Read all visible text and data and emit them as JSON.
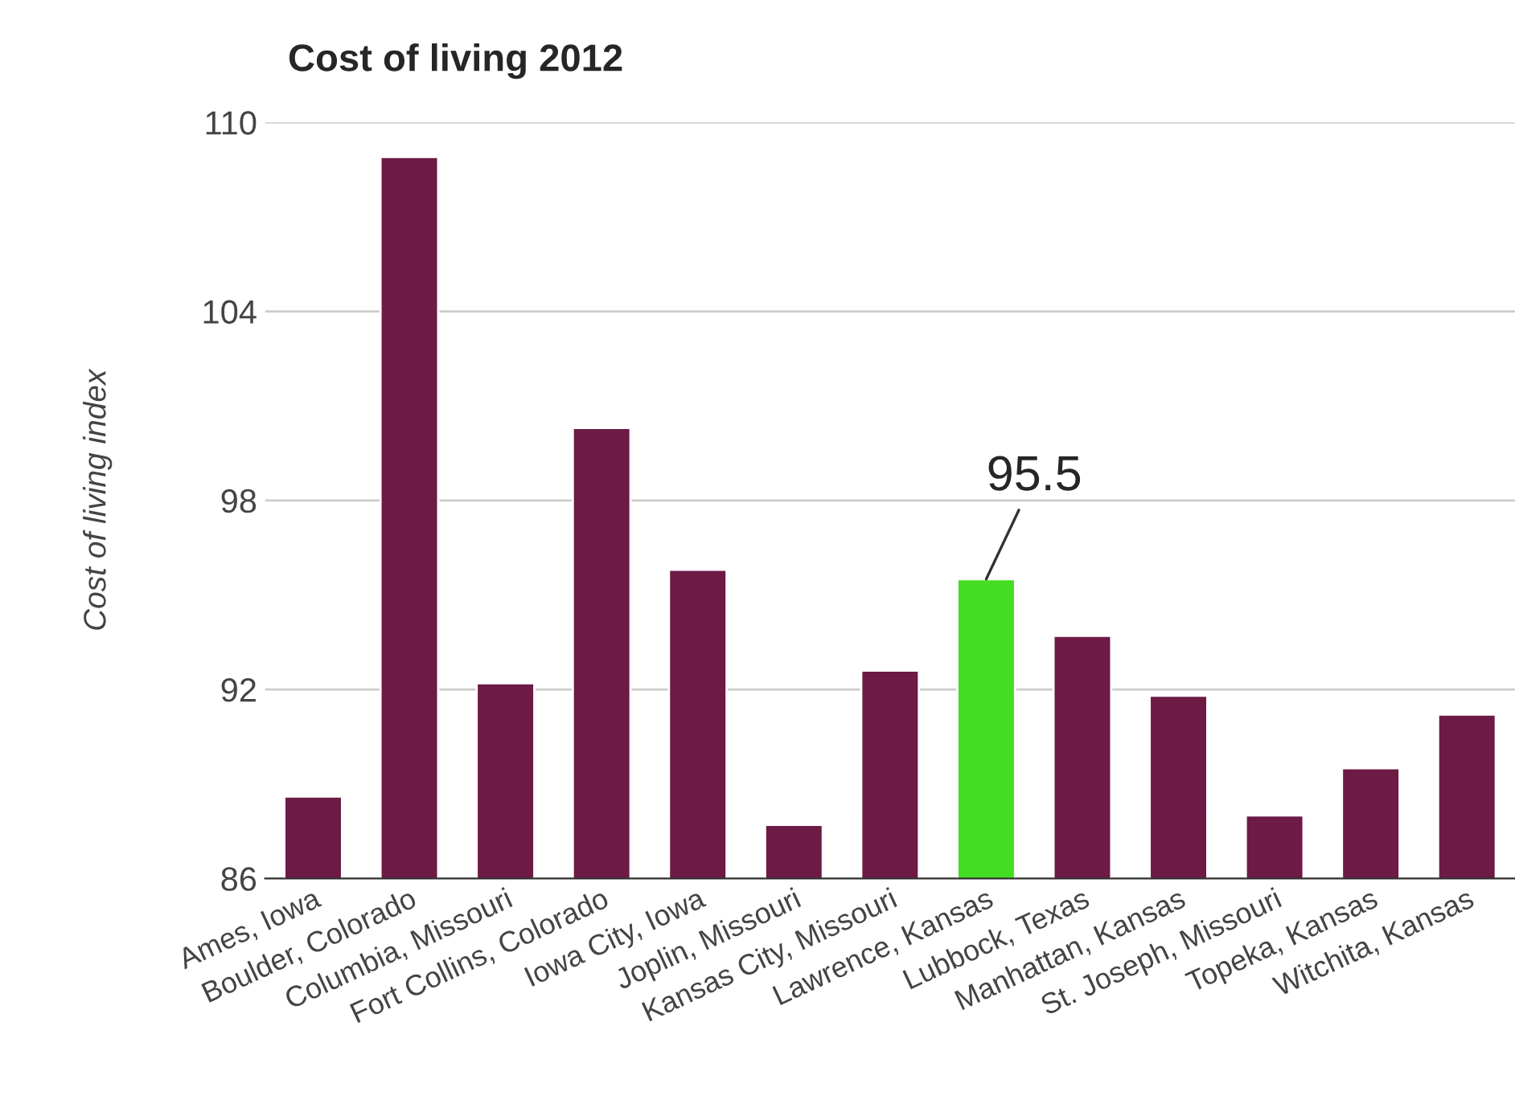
{
  "chart_data": {
    "type": "bar",
    "title": "Cost of living 2012",
    "ylabel": "Cost of living index",
    "categories": [
      "Ames, Iowa",
      "Boulder, Colorado",
      "Columbia, Missouri",
      "Fort Collins, Colorado",
      "Iowa City, Iowa",
      "Joplin, Missouri",
      "Kansas City, Missouri",
      "Lawrence, Kansas",
      "Lubbock, Texas",
      "Manhattan, Kansas",
      "St. Joseph, Missouri",
      "Topeka, Kansas",
      "Witchita, Kansas"
    ],
    "values": [
      88.6,
      108.9,
      92.2,
      100.3,
      95.8,
      87.7,
      92.6,
      95.5,
      93.7,
      91.8,
      88.0,
      89.5,
      91.2
    ],
    "colors": [
      "#6d1a45",
      "#6d1a45",
      "#6d1a45",
      "#6d1a45",
      "#6d1a45",
      "#6d1a45",
      "#6d1a45",
      "#44dd22",
      "#6d1a45",
      "#6d1a45",
      "#6d1a45",
      "#6d1a45",
      "#6d1a45"
    ],
    "value_labels": [
      null,
      null,
      null,
      null,
      null,
      null,
      null,
      "95.5",
      null,
      null,
      null,
      null,
      null
    ],
    "ylim": [
      86,
      110
    ],
    "yticks": [
      86,
      92,
      98,
      104,
      110
    ],
    "grid": "y",
    "legend": false
  }
}
